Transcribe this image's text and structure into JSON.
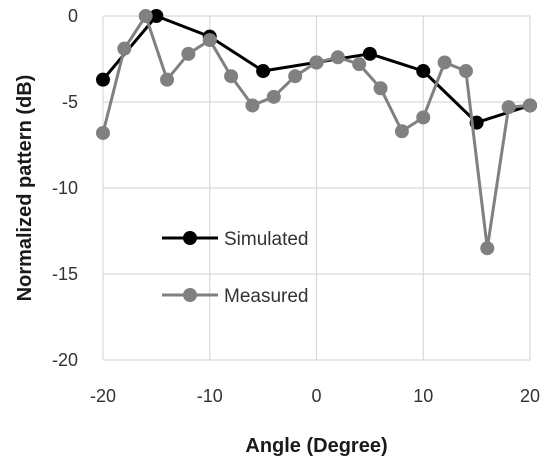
{
  "chart_data": {
    "type": "line",
    "xlabel": "Angle (Degree)",
    "ylabel": "Normalized pattern (dB)",
    "xlim": [
      -20,
      20
    ],
    "ylim": [
      -20,
      0
    ],
    "x_ticks": [
      -20,
      -10,
      0,
      10,
      20
    ],
    "y_ticks": [
      0,
      -5,
      -10,
      -15,
      -20
    ],
    "x_tick_labels": [
      "-20",
      "-10",
      "0",
      "10",
      "20"
    ],
    "y_tick_labels": [
      "0",
      "-5",
      "-10",
      "-15",
      "-20"
    ],
    "grid": true,
    "legend_position": "center-left",
    "series": [
      {
        "name": "Simulated",
        "color": "#000000",
        "marker": "circle",
        "points": [
          [
            -20,
            -3.7
          ],
          [
            -15,
            0
          ],
          [
            -10,
            -1.2
          ],
          [
            -5,
            -3.2
          ],
          [
            0,
            -2.7
          ],
          [
            5,
            -2.2
          ],
          [
            10,
            -3.2
          ],
          [
            15,
            -6.2
          ],
          [
            20,
            -5.2
          ]
        ]
      },
      {
        "name": "Measured",
        "color": "#808080",
        "marker": "circle",
        "points": [
          [
            -20,
            -6.8
          ],
          [
            -18,
            -1.9
          ],
          [
            -16,
            0
          ],
          [
            -14,
            -3.7
          ],
          [
            -12,
            -2.2
          ],
          [
            -10,
            -1.4
          ],
          [
            -8,
            -3.5
          ],
          [
            -6,
            -5.2
          ],
          [
            -4,
            -4.7
          ],
          [
            -2,
            -3.5
          ],
          [
            0,
            -2.7
          ],
          [
            2,
            -2.4
          ],
          [
            4,
            -2.8
          ],
          [
            6,
            -4.2
          ],
          [
            8,
            -6.7
          ],
          [
            10,
            -5.9
          ],
          [
            12,
            -2.7
          ],
          [
            14,
            -3.2
          ],
          [
            16,
            -13.5
          ],
          [
            18,
            -5.3
          ],
          [
            20,
            -5.2
          ]
        ]
      }
    ]
  }
}
